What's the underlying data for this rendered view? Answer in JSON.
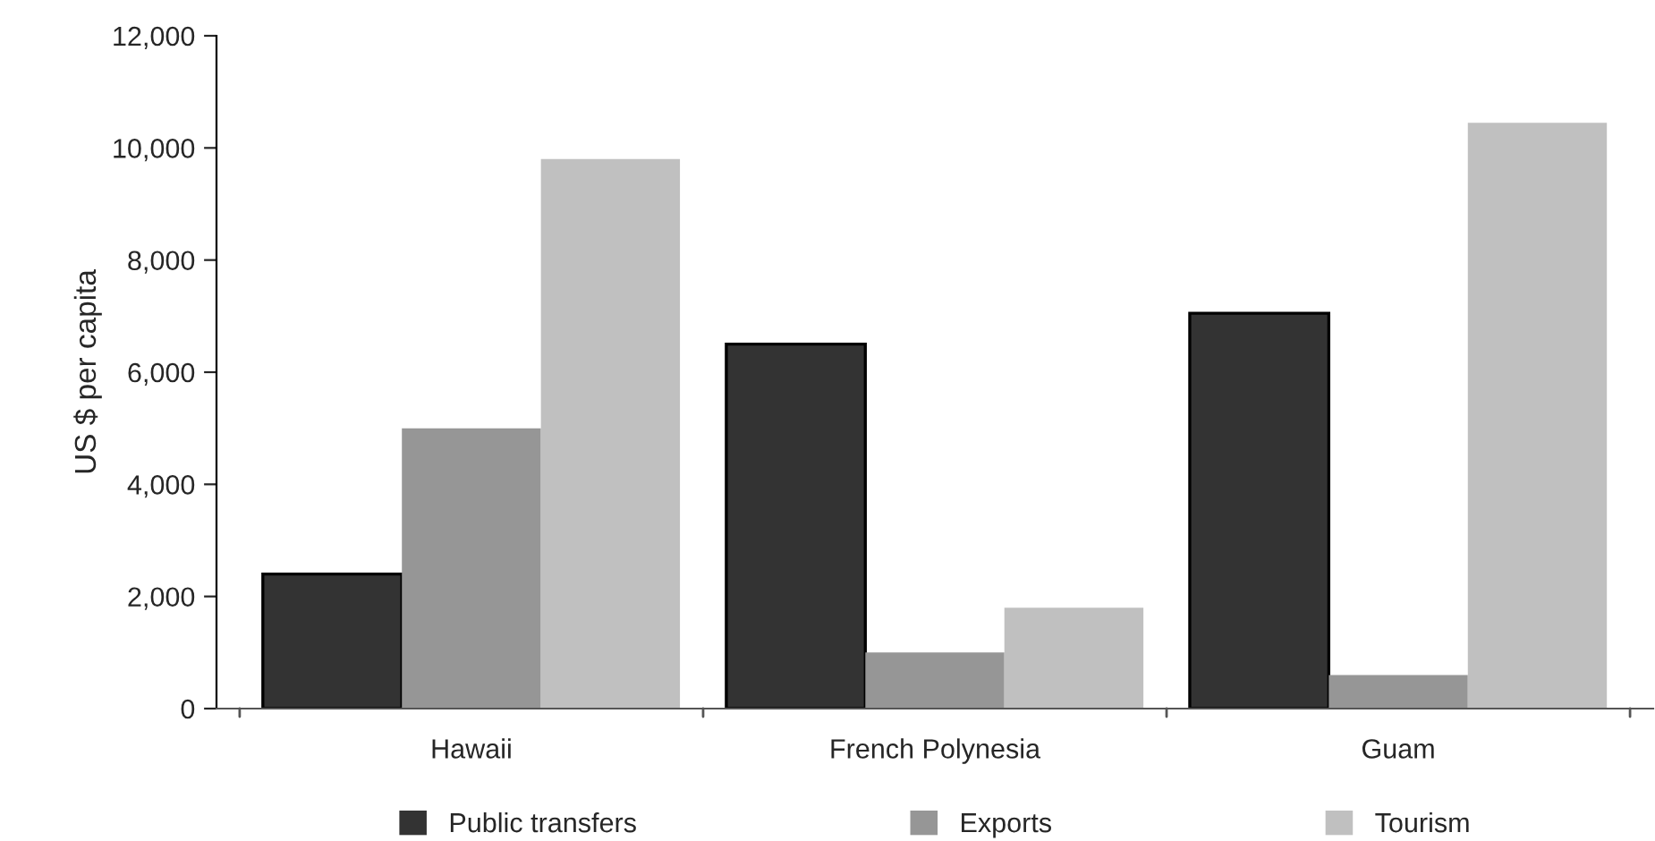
{
  "chart_data": {
    "type": "bar",
    "ylabel": "US $ per capita",
    "categories": [
      "Hawaii",
      "French Polynesia",
      "Guam"
    ],
    "series": [
      {
        "name": "Public transfers",
        "color": "#333333",
        "values": [
          2400,
          6500,
          7050
        ]
      },
      {
        "name": "Exports",
        "color": "#969696",
        "values": [
          5000,
          1000,
          600
        ]
      },
      {
        "name": "Tourism",
        "color": "#c0c0c0",
        "values": [
          9800,
          1800,
          10450
        ]
      }
    ],
    "ylim": [
      0,
      12000
    ],
    "yticks": [
      {
        "value": 0,
        "label": "0"
      },
      {
        "value": 2000,
        "label": "2,000"
      },
      {
        "value": 4000,
        "label": "4,000"
      },
      {
        "value": 6000,
        "label": "6,000"
      },
      {
        "value": 8000,
        "label": "8,000"
      },
      {
        "value": 10000,
        "label": "10,000"
      },
      {
        "value": 12000,
        "label": "12,000"
      }
    ],
    "grid": false,
    "legend": "bottom"
  }
}
